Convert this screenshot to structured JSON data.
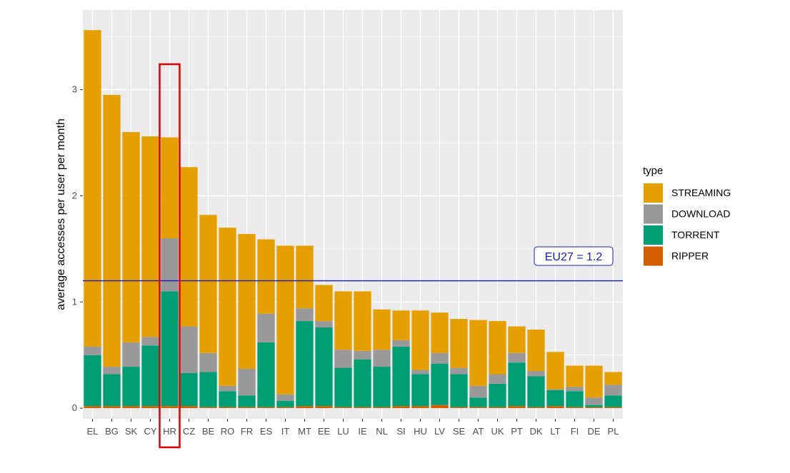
{
  "chart_data": {
    "type": "bar",
    "stacked": true,
    "title": "",
    "xlabel": "",
    "ylabel": "average accesses per user per month",
    "ylim": [
      -0.1,
      3.75
    ],
    "yticks": [
      0,
      1,
      2,
      3
    ],
    "grid": true,
    "legend": {
      "title": "type",
      "placement": "right",
      "entries": [
        "STREAMING",
        "DOWNLOAD",
        "TORRENT",
        "RIPPER"
      ]
    },
    "categories": [
      "EL",
      "BG",
      "SK",
      "CY",
      "HR",
      "CZ",
      "BE",
      "RO",
      "FR",
      "ES",
      "IT",
      "MT",
      "EE",
      "LU",
      "IE",
      "NL",
      "SI",
      "HU",
      "LV",
      "SE",
      "AT",
      "UK",
      "PT",
      "DK",
      "LT",
      "FI",
      "DE",
      "PL"
    ],
    "series": [
      {
        "name": "RIPPER",
        "color": "#d55e00",
        "values": [
          0.02,
          0.02,
          0.02,
          0.02,
          0.02,
          0.02,
          0.01,
          0.01,
          0.01,
          0.01,
          0.01,
          0.02,
          0.02,
          0.01,
          0.01,
          0.01,
          0.02,
          0.02,
          0.03,
          0.01,
          0.01,
          0.01,
          0.02,
          0.01,
          0.02,
          0.01,
          0.01,
          0.01
        ]
      },
      {
        "name": "TORRENT",
        "color": "#009e73",
        "values": [
          0.48,
          0.3,
          0.37,
          0.57,
          1.08,
          0.31,
          0.33,
          0.15,
          0.11,
          0.61,
          0.06,
          0.8,
          0.74,
          0.37,
          0.45,
          0.38,
          0.56,
          0.3,
          0.39,
          0.31,
          0.09,
          0.22,
          0.41,
          0.29,
          0.15,
          0.15,
          0.02,
          0.11
        ]
      },
      {
        "name": "DOWNLOAD",
        "color": "#999999",
        "values": [
          0.08,
          0.07,
          0.23,
          0.08,
          0.5,
          0.44,
          0.18,
          0.05,
          0.25,
          0.27,
          0.06,
          0.12,
          0.06,
          0.17,
          0.08,
          0.16,
          0.06,
          0.04,
          0.1,
          0.06,
          0.11,
          0.09,
          0.09,
          0.05,
          0.01,
          0.04,
          0.07,
          0.1
        ]
      },
      {
        "name": "STREAMING",
        "color": "#e69f00",
        "values": [
          2.98,
          2.56,
          1.98,
          1.89,
          0.95,
          1.5,
          1.3,
          1.49,
          1.27,
          0.7,
          1.4,
          0.59,
          0.34,
          0.55,
          0.56,
          0.38,
          0.28,
          0.56,
          0.38,
          0.46,
          0.62,
          0.5,
          0.25,
          0.39,
          0.35,
          0.2,
          0.3,
          0.12
        ]
      }
    ],
    "reference_line": {
      "label": "EU27 = 1.2",
      "value": 1.2,
      "color": "#1a1ac8"
    },
    "highlight": {
      "category": "HR",
      "color": "#e00000"
    },
    "panel_background": "#ebebeb",
    "grid_color": "#ffffff"
  }
}
